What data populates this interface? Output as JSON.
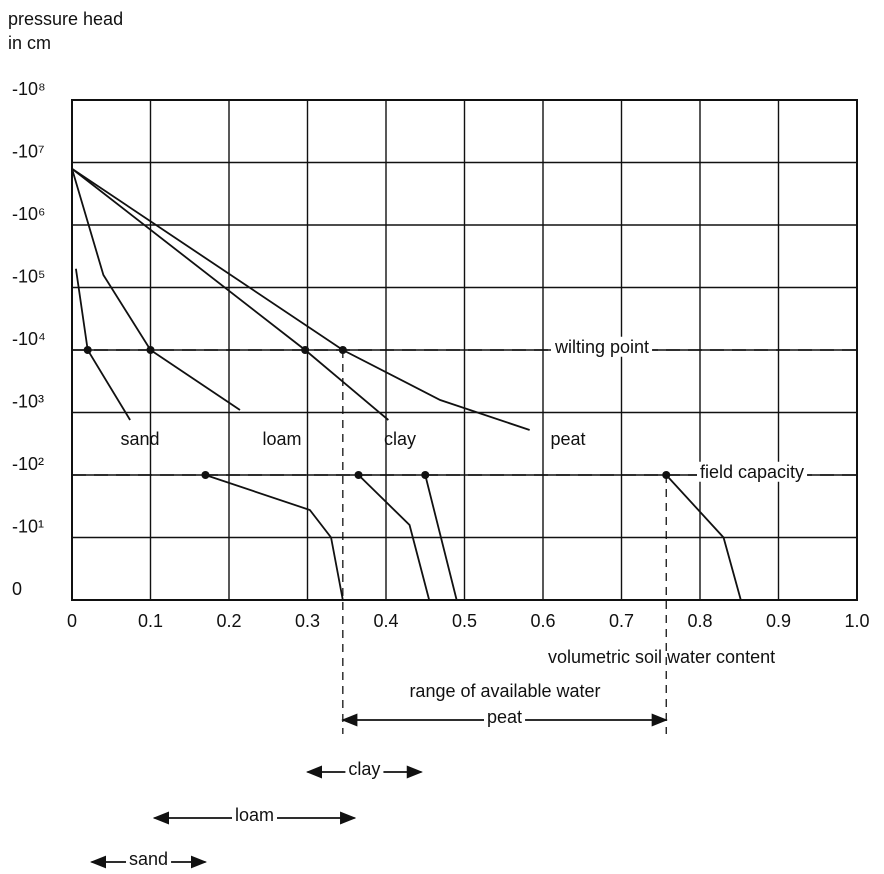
{
  "chart_data": {
    "type": "line",
    "y_label": [
      "pressure head",
      "in cm"
    ],
    "x_label": "volumetric soil water content",
    "xlim": [
      0,
      1
    ],
    "xticks": [
      0,
      0.1,
      0.2,
      0.3,
      0.4,
      0.5,
      0.6,
      0.7,
      0.8,
      0.9,
      {
        "value": 1,
        "label": "1.0"
      }
    ],
    "ylim": [
      0,
      8
    ],
    "yticks": [
      {
        "value": 0,
        "label": "0"
      },
      {
        "value": 1,
        "label": "-10¹"
      },
      {
        "value": 2,
        "label": "-10²"
      },
      {
        "value": 3,
        "label": "-10³"
      },
      {
        "value": 4,
        "label": "-10⁴"
      },
      {
        "value": 5,
        "label": "-10⁵"
      },
      {
        "value": 6,
        "label": "-10⁶"
      },
      {
        "value": 7,
        "label": "-10⁷"
      },
      {
        "value": 8,
        "label": "-10⁸"
      }
    ],
    "grid": true,
    "color": "#111111",
    "series": [
      {
        "name": "sand",
        "x": [
          0.005,
          0.02,
          0.074,
          0.112,
          0.17,
          0.303,
          0.33,
          0.345
        ],
        "values": [
          5.3,
          4,
          2.88,
          null,
          2,
          1.44,
          1,
          0
        ]
      },
      {
        "name": "loam",
        "x": [
          0,
          0.04,
          0.1,
          0.214,
          0.31,
          0.365,
          0.43,
          0.455
        ],
        "values": [
          6.9,
          5.2,
          4,
          3.04,
          null,
          2,
          1.2,
          0
        ]
      },
      {
        "name": "clay",
        "x": [
          0,
          0.297,
          0.403,
          0.438,
          0.45,
          0.49
        ],
        "values": [
          6.9,
          4,
          2.88,
          null,
          2,
          0
        ]
      },
      {
        "name": "peat",
        "x": [
          0,
          0.345,
          0.469,
          0.583,
          0.6,
          0.757,
          0.83,
          0.852
        ],
        "values": [
          6.9,
          4,
          3.2,
          2.72,
          null,
          2,
          1,
          0
        ]
      }
    ],
    "reference_lines": [
      {
        "label": "wilting point",
        "y": 4
      },
      {
        "label": "field capacity",
        "y": 2
      }
    ],
    "range_title": "range of available water",
    "ranges": [
      {
        "label": "peat",
        "from": 0.345,
        "to": 0.757
      },
      {
        "label": "clay",
        "from": 0.3,
        "to": 0.445
      },
      {
        "label": "loam",
        "from": 0.105,
        "to": 0.36
      },
      {
        "label": "sand",
        "from": 0.025,
        "to": 0.17
      }
    ]
  }
}
